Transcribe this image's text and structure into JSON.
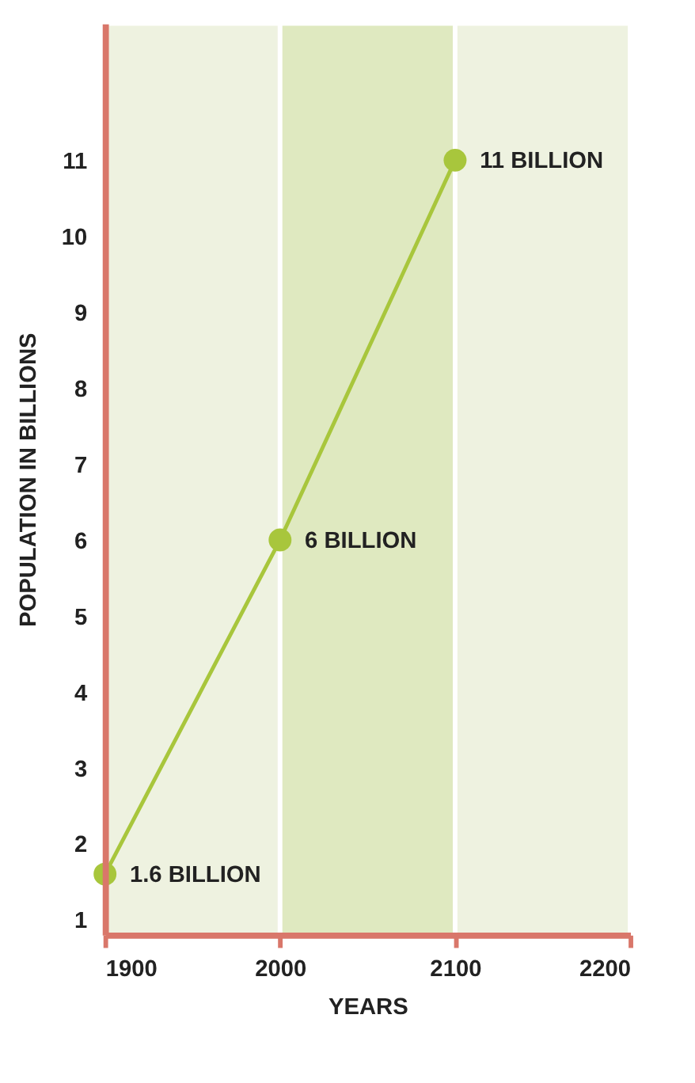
{
  "chart_data": {
    "type": "line",
    "xlabel": "YEARS",
    "ylabel": "POPULATION IN BILLIONS",
    "x": [
      1900,
      2000,
      2100
    ],
    "series": [
      {
        "color": "#a8c63c",
        "values": [
          1.6,
          6,
          11
        ],
        "value_labels": [
          "1.6 BILLION",
          "6 BILLION",
          "11 BILLION"
        ]
      }
    ],
    "xlim": [
      1900,
      2200
    ],
    "xticks": [
      1900,
      2000,
      2100,
      2200
    ],
    "ylim": [
      0.8,
      12.8
    ],
    "yticks": [
      1,
      2,
      3,
      4,
      5,
      6,
      7,
      8,
      9,
      10,
      11
    ],
    "bands": [
      {
        "axis": "x",
        "from": 1900,
        "to": 2000,
        "color": "#eef2e0"
      },
      {
        "axis": "x",
        "from": 2000,
        "to": 2100,
        "color": "#dfe9c0"
      },
      {
        "axis": "x",
        "from": 2100,
        "to": 2200,
        "color": "#eef2e0"
      }
    ],
    "marker": "circle",
    "line_style": "solid",
    "grid": false
  }
}
